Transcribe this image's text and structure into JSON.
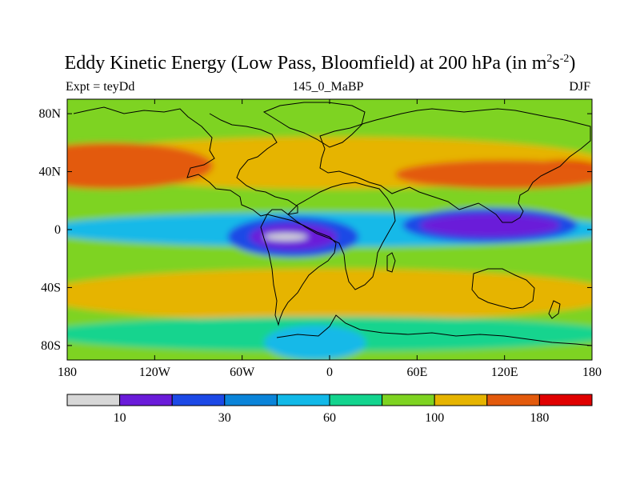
{
  "chart_data": {
    "type": "heatmap",
    "title_main": "Eddy Kinetic Energy (Low Pass, Bloomfield) at 200 hPa (in m",
    "title_sup1": "2",
    "title_mid": "s",
    "title_sup2": "-2",
    "title_end": ")",
    "left_label": "Expt = teyDd",
    "center_label": "145_0_MaBP",
    "right_label": "DJF",
    "x_range": [
      -180,
      180
    ],
    "y_range": [
      -90,
      90
    ],
    "x_ticks": [
      {
        "value": -180,
        "label": "180"
      },
      {
        "value": -120,
        "label": "120W"
      },
      {
        "value": -60,
        "label": "60W"
      },
      {
        "value": 0,
        "label": "0"
      },
      {
        "value": 60,
        "label": "60E"
      },
      {
        "value": 120,
        "label": "120E"
      },
      {
        "value": 180,
        "label": "180"
      }
    ],
    "y_ticks": [
      {
        "value": 80,
        "label": "80N"
      },
      {
        "value": 40,
        "label": "40N"
      },
      {
        "value": 0,
        "label": "0"
      },
      {
        "value": -40,
        "label": "40S"
      },
      {
        "value": -80,
        "label": "80S"
      }
    ],
    "colorbar": {
      "levels": [
        10,
        20,
        30,
        45,
        60,
        80,
        100,
        140,
        180
      ],
      "labels": [
        {
          "value": 10,
          "label": "10"
        },
        {
          "value": 30,
          "label": "30"
        },
        {
          "value": 60,
          "label": "60"
        },
        {
          "value": 100,
          "label": "100"
        },
        {
          "value": 180,
          "label": "180"
        }
      ],
      "colors": [
        "#d7d7d7",
        "#6a1bd9",
        "#1c49e6",
        "#0a84d9",
        "#12b9e8",
        "#13d48e",
        "#7ed321",
        "#e6b400",
        "#e35a0c",
        "#e00000"
      ]
    },
    "field_regions": [
      {
        "name": "background",
        "value": 85
      },
      {
        "name": "arctic_band",
        "value": 80,
        "lon": 0,
        "lat": 78,
        "rx": 200,
        "ry": 12
      },
      {
        "name": "north_band",
        "value": 120,
        "lon": 0,
        "lat": 46,
        "rx": 190,
        "ry": 18
      },
      {
        "name": "north_pacific_jet",
        "value": 200,
        "lon": -155,
        "lat": 42,
        "rx": 42,
        "ry": 10
      },
      {
        "name": "north_pacific_jet_halo",
        "value": 150,
        "lon": -150,
        "lat": 44,
        "rx": 70,
        "ry": 16
      },
      {
        "name": "asian_jet",
        "value": 190,
        "lon": 160,
        "lat": 40,
        "rx": 30,
        "ry": 8
      },
      {
        "name": "asian_jet_halo",
        "value": 150,
        "lon": 120,
        "lat": 38,
        "rx": 75,
        "ry": 10
      },
      {
        "name": "equatorial_band",
        "value": 50,
        "lon": 0,
        "lat": 0,
        "rx": 200,
        "ry": 12
      },
      {
        "name": "south_american_low",
        "value": 25,
        "lon": -25,
        "lat": -5,
        "rx": 45,
        "ry": 14
      },
      {
        "name": "south_american_min",
        "value": 15,
        "lon": -25,
        "lat": -5,
        "rx": 30,
        "ry": 9
      },
      {
        "name": "south_american_core",
        "value": 5,
        "lon": -30,
        "lat": -5,
        "rx": 15,
        "ry": 2.5
      },
      {
        "name": "indian_ocean_low",
        "value": 25,
        "lon": 110,
        "lat": 3,
        "rx": 60,
        "ry": 12
      },
      {
        "name": "indian_ocean_min",
        "value": 15,
        "lon": 110,
        "lat": 3,
        "rx": 48,
        "ry": 8
      },
      {
        "name": "south_band",
        "value": 120,
        "lon": 0,
        "lat": -45,
        "rx": 200,
        "ry": 18
      },
      {
        "name": "southern_ocean",
        "value": 70,
        "lon": 0,
        "lat": -72,
        "rx": 200,
        "ry": 12
      },
      {
        "name": "antarctic_low",
        "value": 50,
        "lon": -10,
        "lat": -78,
        "rx": 35,
        "ry": 12
      }
    ]
  }
}
